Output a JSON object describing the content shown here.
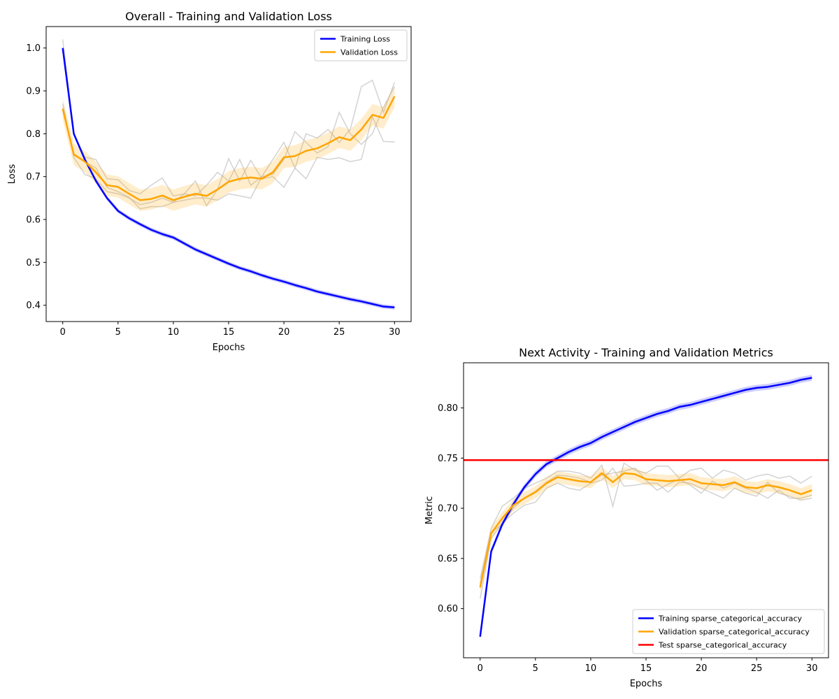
{
  "chart_data": [
    {
      "type": "line",
      "title": "Overall - Training and Validation Loss",
      "xlabel": "Epochs",
      "ylabel": "Loss",
      "xlim": [
        -1.5,
        31.5
      ],
      "ylim": [
        0.362,
        1.05
      ],
      "xticks": [
        0,
        5,
        10,
        15,
        20,
        25,
        30
      ],
      "yticks": [
        0.4,
        0.5,
        0.6,
        0.7,
        0.8,
        0.9,
        1.0
      ],
      "ytick_labels": [
        "0.4",
        "0.5",
        "0.6",
        "0.7",
        "0.8",
        "0.9",
        "1.0"
      ],
      "legend_position": "top-right",
      "x": [
        0,
        1,
        2,
        3,
        4,
        5,
        6,
        7,
        8,
        9,
        10,
        11,
        12,
        13,
        14,
        15,
        16,
        17,
        18,
        19,
        20,
        21,
        22,
        23,
        24,
        25,
        26,
        27,
        28,
        29,
        30
      ],
      "series": [
        {
          "name": "Training Loss",
          "color": "#0000ff",
          "values": [
            1.0,
            0.8,
            0.74,
            0.69,
            0.65,
            0.62,
            0.603,
            0.589,
            0.576,
            0.566,
            0.558,
            0.544,
            0.53,
            0.519,
            0.508,
            0.497,
            0.487,
            0.479,
            0.47,
            0.462,
            0.455,
            0.447,
            0.44,
            0.432,
            0.426,
            0.42,
            0.414,
            0.409,
            0.403,
            0.397,
            0.395
          ],
          "band_width": 0.005
        },
        {
          "name": "Validation Loss",
          "color": "#ffa500",
          "values": [
            0.858,
            0.752,
            0.735,
            0.71,
            0.68,
            0.676,
            0.66,
            0.645,
            0.648,
            0.656,
            0.645,
            0.653,
            0.66,
            0.655,
            0.67,
            0.688,
            0.695,
            0.698,
            0.695,
            0.71,
            0.745,
            0.748,
            0.76,
            0.766,
            0.778,
            0.792,
            0.785,
            0.81,
            0.844,
            0.837,
            0.887
          ],
          "band_width": 0.025
        }
      ],
      "run_traces": [
        {
          "color": "#bbbbbb",
          "values": [
            0.87,
            0.745,
            0.705,
            0.695,
            0.665,
            0.66,
            0.65,
            0.635,
            0.64,
            0.65,
            0.64,
            0.66,
            0.69,
            0.632,
            0.67,
            0.742,
            0.69,
            0.738,
            0.695,
            0.7,
            0.675,
            0.72,
            0.695,
            0.745,
            0.74,
            0.744,
            0.735,
            0.74,
            0.84,
            0.782,
            0.781
          ]
        },
        {
          "color": "#bbbbbb",
          "values": [
            1.02,
            0.8,
            0.745,
            0.74,
            0.695,
            0.693,
            0.668,
            0.66,
            0.68,
            0.697,
            0.655,
            0.66,
            0.655,
            0.68,
            0.71,
            0.69,
            0.74,
            0.68,
            0.7,
            0.74,
            0.78,
            0.72,
            0.8,
            0.79,
            0.81,
            0.78,
            0.81,
            0.91,
            0.925,
            0.85,
            0.92
          ]
        },
        {
          "color": "#bbbbbb",
          "values": [
            0.86,
            0.75,
            0.735,
            0.72,
            0.675,
            0.665,
            0.652,
            0.625,
            0.63,
            0.63,
            0.64,
            0.645,
            0.65,
            0.65,
            0.645,
            0.66,
            0.655,
            0.65,
            0.7,
            0.705,
            0.74,
            0.805,
            0.78,
            0.755,
            0.77,
            0.85,
            0.8,
            0.775,
            0.8,
            0.862,
            0.91
          ]
        }
      ]
    },
    {
      "type": "line",
      "title": "Next Activity - Training and Validation Metrics",
      "xlabel": "Epochs",
      "ylabel": "Metric",
      "xlim": [
        -1.5,
        31.5
      ],
      "ylim": [
        0.551,
        0.845
      ],
      "xticks": [
        0,
        5,
        10,
        15,
        20,
        25,
        30
      ],
      "yticks": [
        0.6,
        0.65,
        0.7,
        0.75,
        0.8
      ],
      "ytick_labels": [
        "0.60",
        "0.65",
        "0.70",
        "0.75",
        "0.80"
      ],
      "legend_position": "bottom-right",
      "x": [
        0,
        1,
        2,
        3,
        4,
        5,
        6,
        7,
        8,
        9,
        10,
        11,
        12,
        13,
        14,
        15,
        16,
        17,
        18,
        19,
        20,
        21,
        22,
        23,
        24,
        25,
        26,
        27,
        28,
        29,
        30
      ],
      "series": [
        {
          "name": "Training sparse_categorical_accuracy",
          "color": "#0000ff",
          "values": [
            0.572,
            0.657,
            0.684,
            0.704,
            0.721,
            0.734,
            0.744,
            0.75,
            0.756,
            0.761,
            0.765,
            0.771,
            0.776,
            0.781,
            0.786,
            0.79,
            0.794,
            0.797,
            0.801,
            0.803,
            0.806,
            0.809,
            0.812,
            0.815,
            0.818,
            0.82,
            0.821,
            0.823,
            0.825,
            0.828,
            0.83
          ],
          "band_width": 0.003
        },
        {
          "name": "Validation sparse_categorical_accuracy",
          "color": "#ffa500",
          "values": [
            0.621,
            0.675,
            0.69,
            0.703,
            0.71,
            0.716,
            0.725,
            0.731,
            0.729,
            0.727,
            0.726,
            0.735,
            0.726,
            0.735,
            0.734,
            0.729,
            0.728,
            0.727,
            0.728,
            0.729,
            0.725,
            0.724,
            0.723,
            0.726,
            0.721,
            0.72,
            0.723,
            0.721,
            0.718,
            0.714,
            0.718
          ],
          "band_width": 0.006
        },
        {
          "name": "Test sparse_categorical_accuracy",
          "color": "#ff0000",
          "hline": 0.748
        }
      ],
      "run_traces": [
        {
          "color": "#bbbbbb",
          "values": [
            0.63,
            0.68,
            0.702,
            0.71,
            0.72,
            0.725,
            0.73,
            0.737,
            0.737,
            0.735,
            0.73,
            0.743,
            0.702,
            0.745,
            0.738,
            0.735,
            0.742,
            0.742,
            0.73,
            0.738,
            0.74,
            0.73,
            0.738,
            0.735,
            0.728,
            0.732,
            0.734,
            0.73,
            0.732,
            0.725,
            0.732
          ]
        },
        {
          "color": "#bbbbbb",
          "values": [
            0.61,
            0.67,
            0.685,
            0.695,
            0.703,
            0.706,
            0.72,
            0.725,
            0.72,
            0.718,
            0.725,
            0.728,
            0.74,
            0.722,
            0.723,
            0.725,
            0.725,
            0.716,
            0.726,
            0.725,
            0.72,
            0.715,
            0.71,
            0.72,
            0.715,
            0.712,
            0.726,
            0.715,
            0.712,
            0.708,
            0.71
          ]
        },
        {
          "color": "#bbbbbb",
          "values": [
            0.625,
            0.676,
            0.684,
            0.7,
            0.71,
            0.717,
            0.726,
            0.733,
            0.732,
            0.73,
            0.726,
            0.733,
            0.735,
            0.737,
            0.74,
            0.728,
            0.718,
            0.724,
            0.729,
            0.723,
            0.715,
            0.727,
            0.72,
            0.725,
            0.72,
            0.716,
            0.71,
            0.718,
            0.71,
            0.71,
            0.713
          ]
        }
      ]
    }
  ]
}
